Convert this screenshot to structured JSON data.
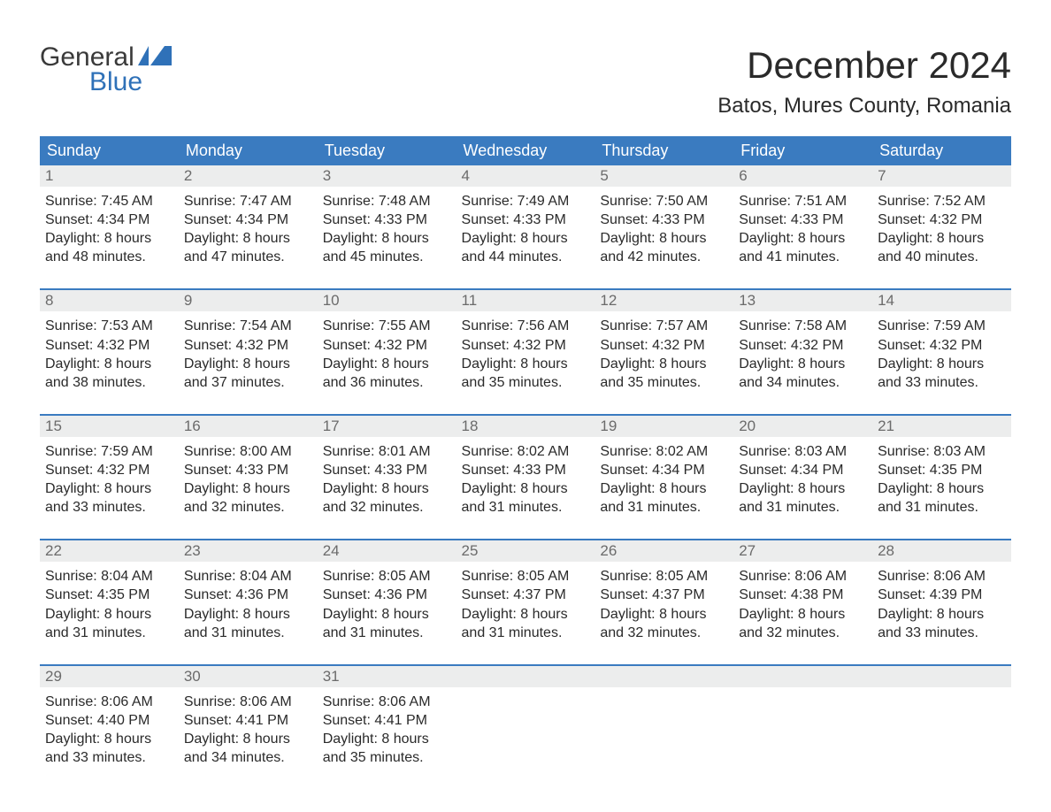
{
  "brand": {
    "word1": "General",
    "word2": "Blue",
    "color_primary": "#2f71b8",
    "color_text": "#3a3a3a"
  },
  "title": "December 2024",
  "location": "Batos, Mures County, Romania",
  "header_bg": "#3a7bc0",
  "header_fg": "#ffffff",
  "daynum_bg": "#eceded",
  "daynum_fg": "#6b6b6b",
  "rule_color": "#3a7bc0",
  "weekdays": [
    "Sunday",
    "Monday",
    "Tuesday",
    "Wednesday",
    "Thursday",
    "Friday",
    "Saturday"
  ],
  "labels": {
    "sunrise": "Sunrise",
    "sunset": "Sunset",
    "daylight_prefix": "Daylight: ",
    "daylight_hours": "8 hours"
  },
  "weeks": [
    [
      {
        "n": "1",
        "sunrise": "7:45 AM",
        "sunset": "4:34 PM",
        "daylight": "Daylight: 8 hours and 48 minutes."
      },
      {
        "n": "2",
        "sunrise": "7:47 AM",
        "sunset": "4:34 PM",
        "daylight": "Daylight: 8 hours and 47 minutes."
      },
      {
        "n": "3",
        "sunrise": "7:48 AM",
        "sunset": "4:33 PM",
        "daylight": "Daylight: 8 hours and 45 minutes."
      },
      {
        "n": "4",
        "sunrise": "7:49 AM",
        "sunset": "4:33 PM",
        "daylight": "Daylight: 8 hours and 44 minutes."
      },
      {
        "n": "5",
        "sunrise": "7:50 AM",
        "sunset": "4:33 PM",
        "daylight": "Daylight: 8 hours and 42 minutes."
      },
      {
        "n": "6",
        "sunrise": "7:51 AM",
        "sunset": "4:33 PM",
        "daylight": "Daylight: 8 hours and 41 minutes."
      },
      {
        "n": "7",
        "sunrise": "7:52 AM",
        "sunset": "4:32 PM",
        "daylight": "Daylight: 8 hours and 40 minutes."
      }
    ],
    [
      {
        "n": "8",
        "sunrise": "7:53 AM",
        "sunset": "4:32 PM",
        "daylight": "Daylight: 8 hours and 38 minutes."
      },
      {
        "n": "9",
        "sunrise": "7:54 AM",
        "sunset": "4:32 PM",
        "daylight": "Daylight: 8 hours and 37 minutes."
      },
      {
        "n": "10",
        "sunrise": "7:55 AM",
        "sunset": "4:32 PM",
        "daylight": "Daylight: 8 hours and 36 minutes."
      },
      {
        "n": "11",
        "sunrise": "7:56 AM",
        "sunset": "4:32 PM",
        "daylight": "Daylight: 8 hours and 35 minutes."
      },
      {
        "n": "12",
        "sunrise": "7:57 AM",
        "sunset": "4:32 PM",
        "daylight": "Daylight: 8 hours and 35 minutes."
      },
      {
        "n": "13",
        "sunrise": "7:58 AM",
        "sunset": "4:32 PM",
        "daylight": "Daylight: 8 hours and 34 minutes."
      },
      {
        "n": "14",
        "sunrise": "7:59 AM",
        "sunset": "4:32 PM",
        "daylight": "Daylight: 8 hours and 33 minutes."
      }
    ],
    [
      {
        "n": "15",
        "sunrise": "7:59 AM",
        "sunset": "4:32 PM",
        "daylight": "Daylight: 8 hours and 33 minutes."
      },
      {
        "n": "16",
        "sunrise": "8:00 AM",
        "sunset": "4:33 PM",
        "daylight": "Daylight: 8 hours and 32 minutes."
      },
      {
        "n": "17",
        "sunrise": "8:01 AM",
        "sunset": "4:33 PM",
        "daylight": "Daylight: 8 hours and 32 minutes."
      },
      {
        "n": "18",
        "sunrise": "8:02 AM",
        "sunset": "4:33 PM",
        "daylight": "Daylight: 8 hours and 31 minutes."
      },
      {
        "n": "19",
        "sunrise": "8:02 AM",
        "sunset": "4:34 PM",
        "daylight": "Daylight: 8 hours and 31 minutes."
      },
      {
        "n": "20",
        "sunrise": "8:03 AM",
        "sunset": "4:34 PM",
        "daylight": "Daylight: 8 hours and 31 minutes."
      },
      {
        "n": "21",
        "sunrise": "8:03 AM",
        "sunset": "4:35 PM",
        "daylight": "Daylight: 8 hours and 31 minutes."
      }
    ],
    [
      {
        "n": "22",
        "sunrise": "8:04 AM",
        "sunset": "4:35 PM",
        "daylight": "Daylight: 8 hours and 31 minutes."
      },
      {
        "n": "23",
        "sunrise": "8:04 AM",
        "sunset": "4:36 PM",
        "daylight": "Daylight: 8 hours and 31 minutes."
      },
      {
        "n": "24",
        "sunrise": "8:05 AM",
        "sunset": "4:36 PM",
        "daylight": "Daylight: 8 hours and 31 minutes."
      },
      {
        "n": "25",
        "sunrise": "8:05 AM",
        "sunset": "4:37 PM",
        "daylight": "Daylight: 8 hours and 31 minutes."
      },
      {
        "n": "26",
        "sunrise": "8:05 AM",
        "sunset": "4:37 PM",
        "daylight": "Daylight: 8 hours and 32 minutes."
      },
      {
        "n": "27",
        "sunrise": "8:06 AM",
        "sunset": "4:38 PM",
        "daylight": "Daylight: 8 hours and 32 minutes."
      },
      {
        "n": "28",
        "sunrise": "8:06 AM",
        "sunset": "4:39 PM",
        "daylight": "Daylight: 8 hours and 33 minutes."
      }
    ],
    [
      {
        "n": "29",
        "sunrise": "8:06 AM",
        "sunset": "4:40 PM",
        "daylight": "Daylight: 8 hours and 33 minutes."
      },
      {
        "n": "30",
        "sunrise": "8:06 AM",
        "sunset": "4:41 PM",
        "daylight": "Daylight: 8 hours and 34 minutes."
      },
      {
        "n": "31",
        "sunrise": "8:06 AM",
        "sunset": "4:41 PM",
        "daylight": "Daylight: 8 hours and 35 minutes."
      },
      null,
      null,
      null,
      null
    ]
  ]
}
